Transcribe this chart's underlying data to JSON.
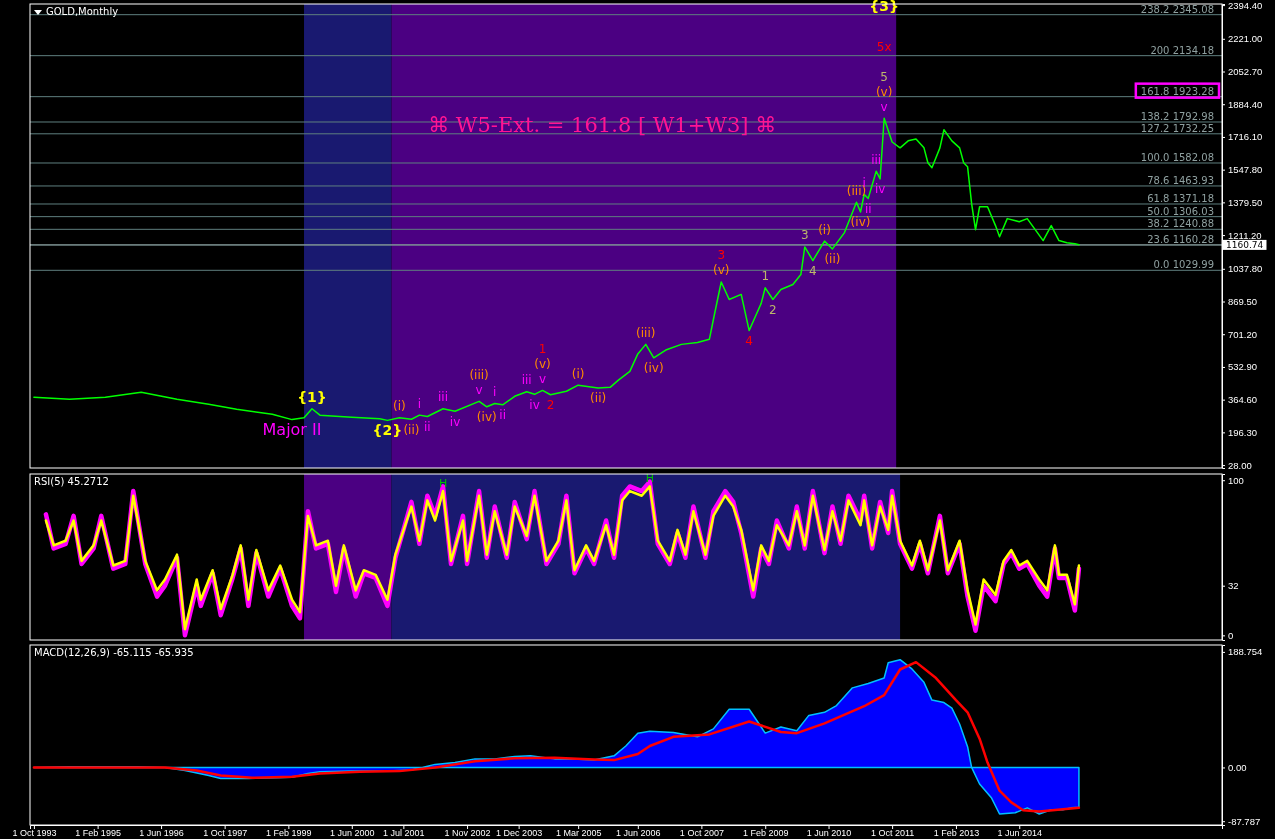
{
  "chart_data": [
    {
      "type": "line",
      "title": "GOLD,Monthly",
      "xlim": [
        "1993-09",
        "2018-09"
      ],
      "ylim": [
        13,
        2400
      ],
      "tick_labels": "y",
      "yticks": [
        {
          "value": 28,
          "label": "28.00"
        },
        {
          "value": 196.3,
          "label": "196.30"
        },
        {
          "value": 364.6,
          "label": "364.60"
        },
        {
          "value": 532.9,
          "label": "532.90"
        },
        {
          "value": 701.2,
          "label": "701.20"
        },
        {
          "value": 869.5,
          "label": "869.50"
        },
        {
          "value": 1037.8,
          "label": "1037.80"
        },
        {
          "value": 1211.2,
          "label": "1211.20"
        },
        {
          "value": 1379.5,
          "label": "1379.50"
        },
        {
          "value": 1547.8,
          "label": "1547.80"
        },
        {
          "value": 1716.1,
          "label": "1716.10"
        },
        {
          "value": 1884.4,
          "label": "1884.40"
        },
        {
          "value": 2052.7,
          "label": "2052.70"
        },
        {
          "value": 2221,
          "label": "2221.00"
        },
        {
          "value": 2394.4,
          "label": "2394.40"
        }
      ],
      "bands": [
        {
          "axis": "x",
          "from": "1999-06",
          "to": "2001-04",
          "color": "#191970"
        },
        {
          "axis": "x",
          "from": "2001-04",
          "to": "2011-11",
          "color": "#4b0082"
        }
      ],
      "ref_lines": [
        {
          "axis": "y",
          "value": 1160.74,
          "label": "1160.74",
          "color": "#c0c0c0"
        },
        {
          "axis": "y",
          "value": 2345.08,
          "label": "238.2 2345.08",
          "color": "#5f7f7f"
        },
        {
          "axis": "y",
          "value": 2134.18,
          "label": "200 2134.18",
          "color": "#5f7f7f"
        },
        {
          "axis": "y",
          "value": 1923.28,
          "label": "161.8 1923.28",
          "color": "#5f7f7f"
        },
        {
          "axis": "y",
          "value": 1792.98,
          "label": "138.2 1792.98",
          "color": "#5f7f7f"
        },
        {
          "axis": "y",
          "value": 1732.25,
          "label": "127.2 1732.25",
          "color": "#5f7f7f"
        },
        {
          "axis": "y",
          "value": 1582.08,
          "label": "100.0 1582.08",
          "color": "#5f7f7f"
        },
        {
          "axis": "y",
          "value": 1463.93,
          "label": "78.6 1463.93",
          "color": "#5f7f7f"
        },
        {
          "axis": "y",
          "value": 1371.18,
          "label": "61.8 1371.18",
          "color": "#5f7f7f"
        },
        {
          "axis": "y",
          "value": 1306.03,
          "label": "50.0 1306.03",
          "color": "#5f7f7f"
        },
        {
          "axis": "y",
          "value": 1240.88,
          "label": "38.2 1240.88",
          "color": "#5f7f7f"
        },
        {
          "axis": "y",
          "value": 1160.28,
          "label": "23.6 1160.28",
          "color": "#5f7f7f"
        },
        {
          "axis": "y",
          "value": 1029.99,
          "label": "0.0 1029.99",
          "color": "#5f7f7f"
        }
      ],
      "series": [
        {
          "color": "#00ff00",
          "x": [
            "1993-10",
            "1994-07",
            "1995-04",
            "1996-01",
            "1996-10",
            "1997-06",
            "1998-01",
            "1998-10",
            "1999-03",
            "1999-06",
            "1999-08",
            "1999-10",
            "2000-06",
            "2001-01",
            "2001-03",
            "2001-06",
            "2001-09",
            "2001-11",
            "2002-01",
            "2002-05",
            "2002-08",
            "2003-02",
            "2003-04",
            "2003-06",
            "2003-08",
            "2003-11",
            "2004-02",
            "2004-04",
            "2004-06",
            "2004-08",
            "2004-12",
            "2005-03",
            "2005-08",
            "2005-11",
            "2006-01",
            "2006-04",
            "2006-06",
            "2006-08",
            "2006-10",
            "2007-01",
            "2007-05",
            "2007-09",
            "2007-12",
            "2008-01",
            "2008-03",
            "2008-05",
            "2008-08",
            "2008-10",
            "2009-01",
            "2009-02",
            "2009-04",
            "2009-06",
            "2009-09",
            "2009-11",
            "2009-12",
            "2010-02",
            "2010-05",
            "2010-07",
            "2010-10",
            "2011-01",
            "2011-02",
            "2011-03",
            "2011-04",
            "2011-06",
            "2011-07",
            "2011-08",
            "2011-10",
            "2011-12",
            "2012-02",
            "2012-04",
            "2012-06",
            "2012-07",
            "2012-08",
            "2012-10",
            "2012-11",
            "2013-01",
            "2013-03",
            "2013-04",
            "2013-05",
            "2013-06",
            "2013-07",
            "2013-08",
            "2013-10",
            "2013-12",
            "2014-01",
            "2014-03",
            "2014-06",
            "2014-08",
            "2014-10",
            "2014-12",
            "2015-02",
            "2015-04",
            "2015-06",
            "2015-08",
            "2015-09"
          ],
          "values": [
            377,
            367,
            377,
            403,
            367,
            341,
            315,
            290,
            262,
            272,
            318,
            285,
            274,
            266,
            258,
            272,
            264,
            285,
            278,
            318,
            305,
            356,
            328,
            345,
            338,
            382,
            405,
            392,
            412,
            390,
            408,
            439,
            425,
            428,
            464,
            510,
            600,
            649,
            580,
            620,
            649,
            659,
            675,
            777,
            970,
            880,
            906,
            720,
            860,
            940,
            880,
            931,
            957,
            1008,
            1150,
            1080,
            1180,
            1140,
            1224,
            1380,
            1330,
            1420,
            1400,
            1540,
            1500,
            1812,
            1690,
            1660,
            1696,
            1706,
            1660,
            1583,
            1558,
            1660,
            1753,
            1696,
            1660,
            1583,
            1563,
            1373,
            1239,
            1357,
            1357,
            1260,
            1203,
            1296,
            1280,
            1296,
            1239,
            1183,
            1260,
            1183,
            1172,
            1167,
            1161
          ]
        }
      ],
      "annotations": [
        "⌘  W5-Ext. = 161.8 [ W1+W3] ⌘",
        {
          "text": "{1}",
          "x": "1999-08",
          "y": 318
        },
        {
          "text": "Major II",
          "x": "1999-03",
          "y": 262
        },
        {
          "text": "{2}",
          "x": "2001-03",
          "y": 258
        },
        {
          "text": "{3}",
          "x": "2011-08",
          "y": 2345.08
        },
        {
          "text": "5x",
          "x": "2011-08",
          "y": 2134.18
        },
        {
          "text": "5",
          "x": "2011-08",
          "y": 1812
        },
        {
          "text": "(v)",
          "x": "2011-08",
          "y": 1812
        },
        {
          "text": "v",
          "x": "2011-08",
          "y": 1812
        },
        {
          "text": "(i)",
          "x": "2001-06",
          "y": 272
        },
        {
          "text": "(ii)",
          "x": "2001-09",
          "y": 264
        },
        {
          "text": "i",
          "x": "2001-11",
          "y": 285
        },
        {
          "text": "ii",
          "x": "2002-01",
          "y": 278
        },
        {
          "text": "iii",
          "x": "2002-05",
          "y": 318
        },
        {
          "text": "iv",
          "x": "2002-08",
          "y": 305
        },
        {
          "text": "(iii)",
          "x": "2003-02",
          "y": 356
        },
        {
          "text": "v",
          "x": "2003-02",
          "y": 356
        },
        {
          "text": "(iv)",
          "x": "2003-04",
          "y": 328
        },
        {
          "text": "i",
          "x": "2003-06",
          "y": 345
        },
        {
          "text": "ii",
          "x": "2003-08",
          "y": 338
        },
        {
          "text": "iii",
          "x": "2004-02",
          "y": 405
        },
        {
          "text": "iv",
          "x": "2004-04",
          "y": 392
        },
        {
          "text": "1",
          "x": "2004-06",
          "y": 412
        },
        {
          "text": "(v)",
          "x": "2004-06",
          "y": 412
        },
        {
          "text": "v",
          "x": "2004-06",
          "y": 412
        },
        {
          "text": "2",
          "x": "2004-08",
          "y": 390
        },
        {
          "text": "(i)",
          "x": "2005-03",
          "y": 439
        },
        {
          "text": "(ii)",
          "x": "2005-08",
          "y": 425
        },
        {
          "text": "(iii)",
          "x": "2006-08",
          "y": 649
        },
        {
          "text": "(iv)",
          "x": "2006-10",
          "y": 580
        },
        {
          "text": "3",
          "x": "2008-03",
          "y": 970
        },
        {
          "text": "(v)",
          "x": "2008-03",
          "y": 970
        },
        {
          "text": "4",
          "x": "2008-10",
          "y": 720
        },
        {
          "text": "1",
          "x": "2009-02",
          "y": 940
        },
        {
          "text": "2",
          "x": "2009-04",
          "y": 880
        },
        {
          "text": "3",
          "x": "2009-12",
          "y": 1150
        },
        {
          "text": "4",
          "x": "2010-02",
          "y": 1080
        },
        {
          "text": "(i)",
          "x": "2010-05",
          "y": 1180
        },
        {
          "text": "(ii)",
          "x": "2010-07",
          "y": 1140
        },
        {
          "text": "(iii)",
          "x": "2011-01",
          "y": 1380
        },
        {
          "text": "(iv)",
          "x": "2011-02",
          "y": 1330
        },
        {
          "text": "i",
          "x": "2011-03",
          "y": 1420
        },
        {
          "text": "ii",
          "x": "2011-04",
          "y": 1400
        },
        {
          "text": "iii",
          "x": "2011-06",
          "y": 1540
        },
        {
          "text": "iv",
          "x": "2011-07",
          "y": 1500
        }
      ]
    },
    {
      "type": "line",
      "title": "RSI(5) 45.2712",
      "xlim": [
        "1993-09",
        "2018-09"
      ],
      "ylim": [
        -3,
        104
      ],
      "tick_labels": "y",
      "yticks": [
        0,
        32,
        100
      ],
      "bands": [
        {
          "axis": "x",
          "from": "1999-06",
          "to": "2001-04",
          "color": "#4b0082"
        },
        {
          "axis": "x",
          "from": "2001-04",
          "to": "2011-12",
          "color": "#191970"
        }
      ],
      "series": [
        {
          "color": "#ff00ff",
          "x": [
            "1994-01",
            "1994-03",
            "1994-06",
            "1994-08",
            "1994-10",
            "1995-01",
            "1995-03",
            "1995-06",
            "1995-09",
            "1995-11",
            "1996-02",
            "1996-05",
            "1996-07",
            "1996-10",
            "1996-12",
            "1997-03",
            "1997-04",
            "1997-07",
            "1997-09",
            "1997-12",
            "1998-02",
            "1998-04",
            "1998-06",
            "1998-09",
            "1998-12",
            "1999-03",
            "1999-05",
            "1999-07",
            "1999-09",
            "1999-12",
            "2000-02",
            "2000-04",
            "2000-07",
            "2000-09",
            "2000-12",
            "2001-03",
            "2001-05",
            "2001-09",
            "2001-11",
            "2002-01",
            "2002-03",
            "2002-05",
            "2002-07",
            "2002-10",
            "2002-11",
            "2003-02",
            "2003-04",
            "2003-06",
            "2003-09",
            "2003-11",
            "2004-02",
            "2004-04",
            "2004-07",
            "2004-10",
            "2004-12",
            "2005-02",
            "2005-05",
            "2005-07",
            "2005-10",
            "2005-12",
            "2006-02",
            "2006-04",
            "2006-07",
            "2006-09",
            "2006-11",
            "2007-02",
            "2007-04",
            "2007-06",
            "2007-08",
            "2007-11",
            "2008-01",
            "2008-04",
            "2008-06",
            "2008-08",
            "2008-11",
            "2009-01",
            "2009-03",
            "2009-05",
            "2009-08",
            "2009-10",
            "2009-12",
            "2010-02",
            "2010-05",
            "2010-07",
            "2010-09",
            "2010-11",
            "2011-02",
            "2011-03",
            "2011-05",
            "2011-07",
            "2011-09",
            "2011-10",
            "2011-12",
            "2012-03",
            "2012-05",
            "2012-07",
            "2012-10",
            "2012-12",
            "2013-03",
            "2013-05",
            "2013-07",
            "2013-09",
            "2013-12",
            "2014-02",
            "2014-04",
            "2014-06",
            "2014-08",
            "2014-11",
            "2015-01",
            "2015-03",
            "2015-04",
            "2015-06",
            "2015-08",
            "2015-09"
          ],
          "values": [
            78,
            56,
            59,
            77,
            46,
            56,
            77,
            43,
            46,
            93,
            46,
            25,
            32,
            50,
            0,
            32,
            19,
            40,
            13,
            37,
            56,
            19,
            53,
            25,
            43,
            19,
            11,
            80,
            56,
            59,
            28,
            56,
            25,
            40,
            37,
            19,
            50,
            86,
            59,
            90,
            77,
            96,
            46,
            77,
            46,
            93,
            50,
            83,
            50,
            86,
            62,
            93,
            46,
            59,
            90,
            40,
            56,
            46,
            74,
            50,
            90,
            96,
            93,
            99,
            59,
            46,
            66,
            50,
            83,
            50,
            80,
            93,
            86,
            66,
            25,
            56,
            46,
            74,
            56,
            83,
            56,
            93,
            53,
            83,
            59,
            90,
            74,
            90,
            56,
            86,
            66,
            93,
            59,
            43,
            59,
            40,
            77,
            40,
            59,
            25,
            3,
            32,
            22,
            46,
            53,
            43,
            46,
            32,
            25,
            56,
            37,
            37,
            16,
            43
          ]
        },
        {
          "color": "#ffff00",
          "x": [
            "1994-01",
            "1994-03",
            "1994-06",
            "1994-08",
            "1994-10",
            "1995-01",
            "1995-03",
            "1995-06",
            "1995-09",
            "1995-11",
            "1996-02",
            "1996-05",
            "1996-07",
            "1996-10",
            "1996-12",
            "1997-03",
            "1997-04",
            "1997-07",
            "1997-09",
            "1997-12",
            "1998-02",
            "1998-04",
            "1998-06",
            "1998-09",
            "1998-12",
            "1999-03",
            "1999-05",
            "1999-07",
            "1999-09",
            "1999-12",
            "2000-02",
            "2000-04",
            "2000-07",
            "2000-09",
            "2000-12",
            "2001-03",
            "2001-05",
            "2001-09",
            "2001-11",
            "2002-01",
            "2002-03",
            "2002-05",
            "2002-07",
            "2002-10",
            "2002-11",
            "2003-02",
            "2003-04",
            "2003-06",
            "2003-09",
            "2003-11",
            "2004-02",
            "2004-04",
            "2004-07",
            "2004-10",
            "2004-12",
            "2005-02",
            "2005-05",
            "2005-07",
            "2005-10",
            "2005-12",
            "2006-02",
            "2006-04",
            "2006-07",
            "2006-09",
            "2006-11",
            "2007-02",
            "2007-04",
            "2007-06",
            "2007-08",
            "2007-11",
            "2008-01",
            "2008-04",
            "2008-06",
            "2008-08",
            "2008-11",
            "2009-01",
            "2009-03",
            "2009-05",
            "2009-08",
            "2009-10",
            "2009-12",
            "2010-02",
            "2010-05",
            "2010-07",
            "2010-09",
            "2010-11",
            "2011-02",
            "2011-03",
            "2011-05",
            "2011-07",
            "2011-09",
            "2011-10",
            "2011-12",
            "2012-03",
            "2012-05",
            "2012-07",
            "2012-10",
            "2012-12",
            "2013-03",
            "2013-05",
            "2013-07",
            "2013-09",
            "2013-12",
            "2014-02",
            "2014-04",
            "2014-06",
            "2014-08",
            "2014-11",
            "2015-01",
            "2015-03",
            "2015-04",
            "2015-06",
            "2015-08",
            "2015-09"
          ],
          "values": [
            74,
            58,
            61,
            74,
            48,
            58,
            74,
            45,
            48,
            90,
            48,
            29,
            36,
            52,
            4,
            36,
            23,
            42,
            17,
            39,
            58,
            23,
            55,
            29,
            45,
            23,
            15,
            77,
            58,
            61,
            32,
            58,
            29,
            42,
            39,
            23,
            52,
            83,
            61,
            87,
            74,
            93,
            48,
            74,
            48,
            90,
            52,
            80,
            52,
            83,
            64,
            90,
            48,
            61,
            87,
            42,
            58,
            48,
            71,
            52,
            87,
            93,
            90,
            96,
            61,
            48,
            68,
            52,
            80,
            52,
            77,
            90,
            83,
            68,
            29,
            58,
            48,
            71,
            58,
            80,
            58,
            90,
            55,
            80,
            61,
            87,
            71,
            87,
            58,
            83,
            68,
            90,
            61,
            45,
            61,
            42,
            74,
            42,
            61,
            29,
            7,
            36,
            26,
            48,
            55,
            45,
            48,
            36,
            29,
            58,
            39,
            39,
            20,
            45
          ]
        }
      ],
      "annotations": [
        {
          "text": "H",
          "x": "2002-05",
          "y": 93
        },
        {
          "text": "H",
          "x": "2006-09",
          "y": 96
        }
      ]
    },
    {
      "type": "line",
      "title": "MACD(12,26,9) -65.115 -65.935",
      "xlim": [
        "1993-09",
        "2018-09"
      ],
      "ylim": [
        -94,
        200
      ],
      "yticks": [
        188.754,
        {
          "value": 0,
          "label": "0.00"
        },
        -87.787
      ],
      "xticks": [
        {
          "value": "1993-10-01",
          "label": "1 Oct 1993"
        },
        {
          "value": "1995-02-01",
          "label": "1 Feb 1995"
        },
        {
          "value": "1996-06-01",
          "label": "1 Jun 1996"
        },
        {
          "value": "1997-10-01",
          "label": "1 Oct 1997"
        },
        {
          "value": "1999-02-01",
          "label": "1 Feb 1999"
        },
        {
          "value": "2000-06-01",
          "label": "1 Jun 2000"
        },
        {
          "value": "2001-07-01",
          "label": "1 Jul 2001"
        },
        {
          "value": "2002-11-01",
          "label": "1 Nov 2002"
        },
        {
          "value": "2003-12-01",
          "label": "1 Dec 2003"
        },
        {
          "value": "2005-03-01",
          "label": "1 Mar 2005"
        },
        {
          "value": "2006-06-01",
          "label": "1 Jun 2006"
        },
        {
          "value": "2007-10-01",
          "label": "1 Oct 2007"
        },
        {
          "value": "2009-02-01",
          "label": "1 Feb 2009"
        },
        {
          "value": "2010-06-01",
          "label": "1 Jun 2010"
        },
        {
          "value": "2011-10-01",
          "label": "1 Oct 2011"
        },
        {
          "value": "2013-02-01",
          "label": "1 Feb 2013"
        },
        {
          "value": "2014-06-01",
          "label": "1 Jun 2014"
        }
      ],
      "series": [
        {
          "type": "area",
          "color": "#0000ff",
          "x": [
            "1993-10",
            "1994-07",
            "1995-12",
            "1996-07",
            "1996-12",
            "1997-06",
            "1997-09",
            "1998-04",
            "1998-11",
            "1999-03",
            "1999-07",
            "1999-10",
            "2000-06",
            "2001-03",
            "2001-09",
            "2002-03",
            "2002-08",
            "2003-01",
            "2003-06",
            "2003-11",
            "2004-03",
            "2004-09",
            "2005-02",
            "2005-07",
            "2005-12",
            "2006-03",
            "2006-06",
            "2006-09",
            "2007-03",
            "2007-09",
            "2008-01",
            "2008-05",
            "2008-10",
            "2009-01",
            "2009-02",
            "2009-06",
            "2009-10",
            "2010-01",
            "2010-05",
            "2010-08",
            "2010-12",
            "2011-04",
            "2011-08",
            "2011-09",
            "2011-12",
            "2012-03",
            "2012-06",
            "2012-08",
            "2012-11",
            "2013-01",
            "2013-03",
            "2013-05",
            "2013-06",
            "2013-08",
            "2013-11",
            "2014-01",
            "2014-05",
            "2014-08",
            "2014-11",
            "2015-02",
            "2015-05",
            "2015-07",
            "2015-09"
          ],
          "values": [
            0,
            1,
            1,
            0,
            -5,
            -13,
            -18,
            -18,
            -17,
            -16,
            -10,
            -7,
            -6,
            -6,
            -4,
            5,
            8,
            14,
            14,
            18,
            19,
            14,
            14,
            12,
            19,
            35,
            56,
            59,
            57,
            50,
            63,
            95,
            95,
            66,
            56,
            66,
            60,
            85,
            90,
            101,
            130,
            137,
            146,
            171,
            176,
            161,
            139,
            110,
            106,
            97,
            71,
            34,
            0,
            -27,
            -50,
            -76,
            -74,
            -66,
            -76,
            -69,
            -69,
            -66,
            -65
          ]
        },
        {
          "color": "#ff0000",
          "x": [
            "1993-10",
            "1996-07",
            "1997-03",
            "1997-09",
            "1998-05",
            "1999-03",
            "1999-10",
            "2000-08",
            "2001-06",
            "2002-03",
            "2003-01",
            "2003-11",
            "2004-09",
            "2005-07",
            "2005-12",
            "2006-06",
            "2006-09",
            "2007-03",
            "2007-12",
            "2008-10",
            "2009-06",
            "2009-10",
            "2010-05",
            "2011-03",
            "2011-08",
            "2011-12",
            "2012-04",
            "2012-09",
            "2013-02",
            "2013-05",
            "2013-08",
            "2013-10",
            "2014-01",
            "2014-04",
            "2014-07",
            "2014-11",
            "2015-09"
          ],
          "values": [
            0,
            0,
            -5,
            -13,
            -17,
            -15,
            -10,
            -7,
            -6,
            0,
            10,
            15,
            16,
            13,
            12,
            22,
            35,
            50,
            54,
            75,
            58,
            56,
            72,
            100,
            118,
            160,
            172,
            146,
            110,
            90,
            47,
            8,
            -38,
            -57,
            -70,
            -72,
            -66
          ]
        }
      ]
    }
  ]
}
